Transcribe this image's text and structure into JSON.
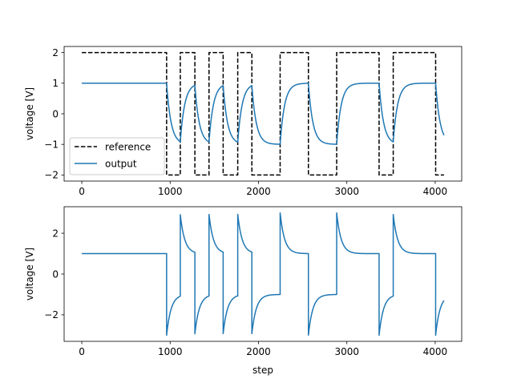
{
  "colors": {
    "reference": "#000000",
    "output": "#1f77b4"
  },
  "chart_data": [
    {
      "type": "line",
      "xlabel": "",
      "ylabel": "voltage [V]",
      "xlim": [
        -200,
        4300
      ],
      "ylim": [
        -2.2,
        2.2
      ],
      "xticks": [
        0,
        1000,
        2000,
        3000,
        4000
      ],
      "xtick_labels": [
        "0",
        "1000",
        "2000",
        "3000",
        "4000"
      ],
      "yticks": [
        2,
        1,
        0,
        -1,
        -2
      ],
      "ytick_labels": [
        "2",
        "1",
        "0",
        "−1",
        "−2"
      ],
      "legend": {
        "position": "lower-left",
        "entries": [
          "reference",
          "output"
        ]
      },
      "series": [
        {
          "name": "reference",
          "style": "dashed",
          "color": "#000000",
          "x": [
            0,
            960,
            960,
            1115,
            1115,
            1280,
            1280,
            1440,
            1440,
            1600,
            1600,
            1765,
            1765,
            1925,
            1925,
            2245,
            2245,
            2565,
            2565,
            2885,
            2885,
            3365,
            3365,
            3525,
            3525,
            4005,
            4005,
            4100
          ],
          "y": [
            2,
            2,
            -2,
            -2,
            2,
            2,
            -2,
            -2,
            2,
            2,
            -2,
            -2,
            2,
            2,
            -2,
            -2,
            2,
            2,
            -2,
            -2,
            2,
            2,
            -2,
            -2,
            2,
            2,
            -2,
            -2
          ]
        },
        {
          "name": "output",
          "style": "solid",
          "color": "#1f77b4",
          "model": "first-order",
          "initial": 1.0,
          "time_constant": 50,
          "end_x": 4100,
          "targets": [
            {
              "x": 960,
              "value": -1
            },
            {
              "x": 1115,
              "value": 1
            },
            {
              "x": 1280,
              "value": -1
            },
            {
              "x": 1440,
              "value": 1
            },
            {
              "x": 1600,
              "value": -1
            },
            {
              "x": 1765,
              "value": 1
            },
            {
              "x": 1925,
              "value": -1
            },
            {
              "x": 2245,
              "value": 1
            },
            {
              "x": 2565,
              "value": -1
            },
            {
              "x": 2885,
              "value": 1
            },
            {
              "x": 3365,
              "value": -1
            },
            {
              "x": 3525,
              "value": 1
            },
            {
              "x": 4005,
              "value": -1
            }
          ]
        }
      ]
    },
    {
      "type": "line",
      "xlabel": "step",
      "ylabel": "voltage [V]",
      "xlim": [
        -200,
        4300
      ],
      "ylim": [
        -3.3,
        3.3
      ],
      "xticks": [
        0,
        1000,
        2000,
        3000,
        4000
      ],
      "xtick_labels": [
        "0",
        "1000",
        "2000",
        "3000",
        "4000"
      ],
      "yticks": [
        2,
        0,
        -2
      ],
      "ytick_labels": [
        "2",
        "0",
        "−2"
      ],
      "series": [
        {
          "name": "",
          "style": "solid",
          "color": "#1f77b4",
          "model": "error-signal",
          "description_source": "reference minus output"
        }
      ]
    }
  ]
}
